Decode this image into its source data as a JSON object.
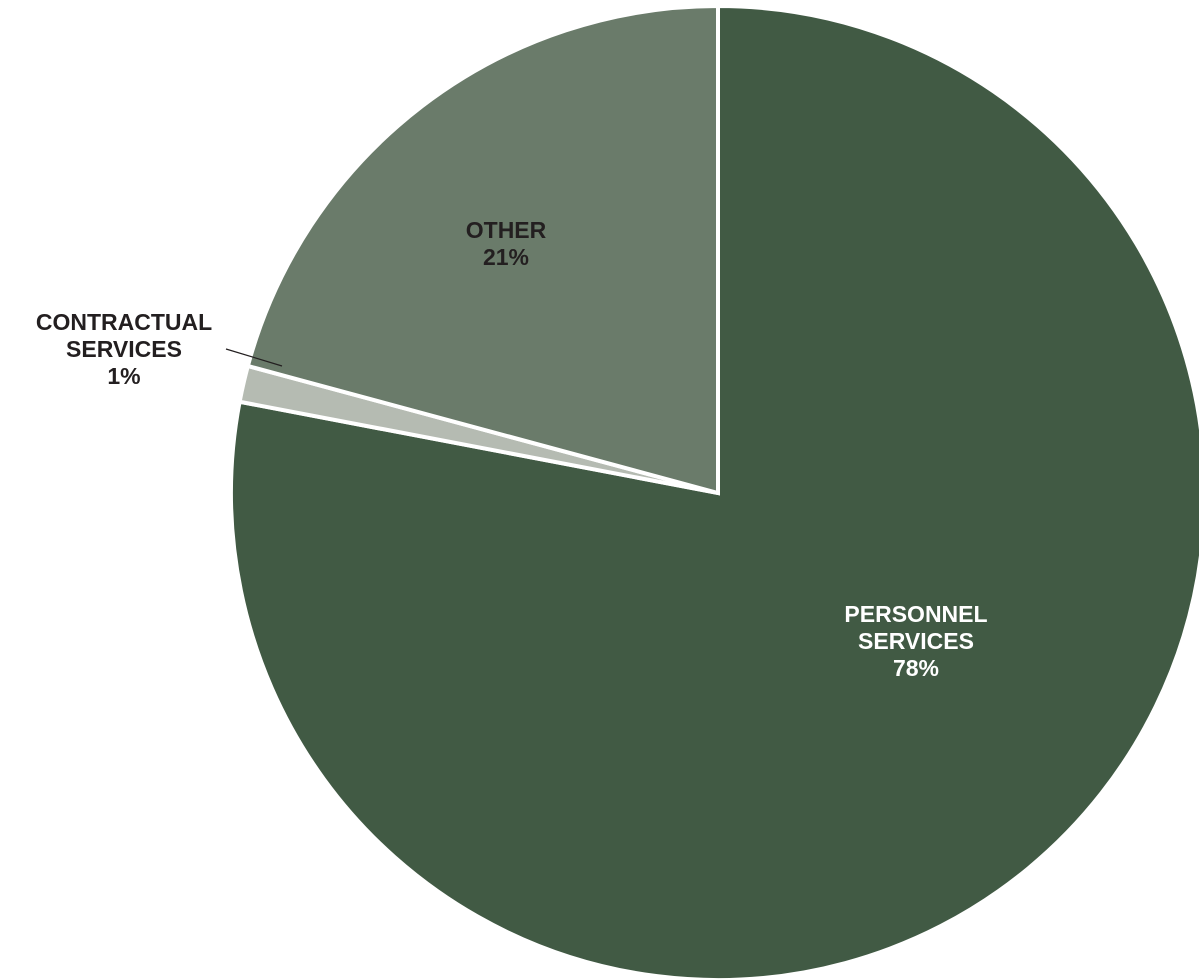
{
  "chart_data": {
    "type": "pie",
    "start_angle_deg": 0,
    "direction": "clockwise",
    "slices": [
      {
        "label_lines": [
          "PERSONNEL",
          "SERVICES"
        ],
        "percent_label": "78%",
        "value": 78,
        "color": "#415a44",
        "label_color": "#ffffff"
      },
      {
        "label_lines": [
          "CONTRACTUAL",
          "SERVICES"
        ],
        "percent_label": "1%",
        "value": 1.2,
        "color": "#b5bbb2",
        "label_color": "#231f20"
      },
      {
        "label_lines": [
          "OTHER"
        ],
        "percent_label": "21%",
        "value": 20.8,
        "color": "#6a7b6a",
        "label_color": "#231f20"
      }
    ]
  }
}
